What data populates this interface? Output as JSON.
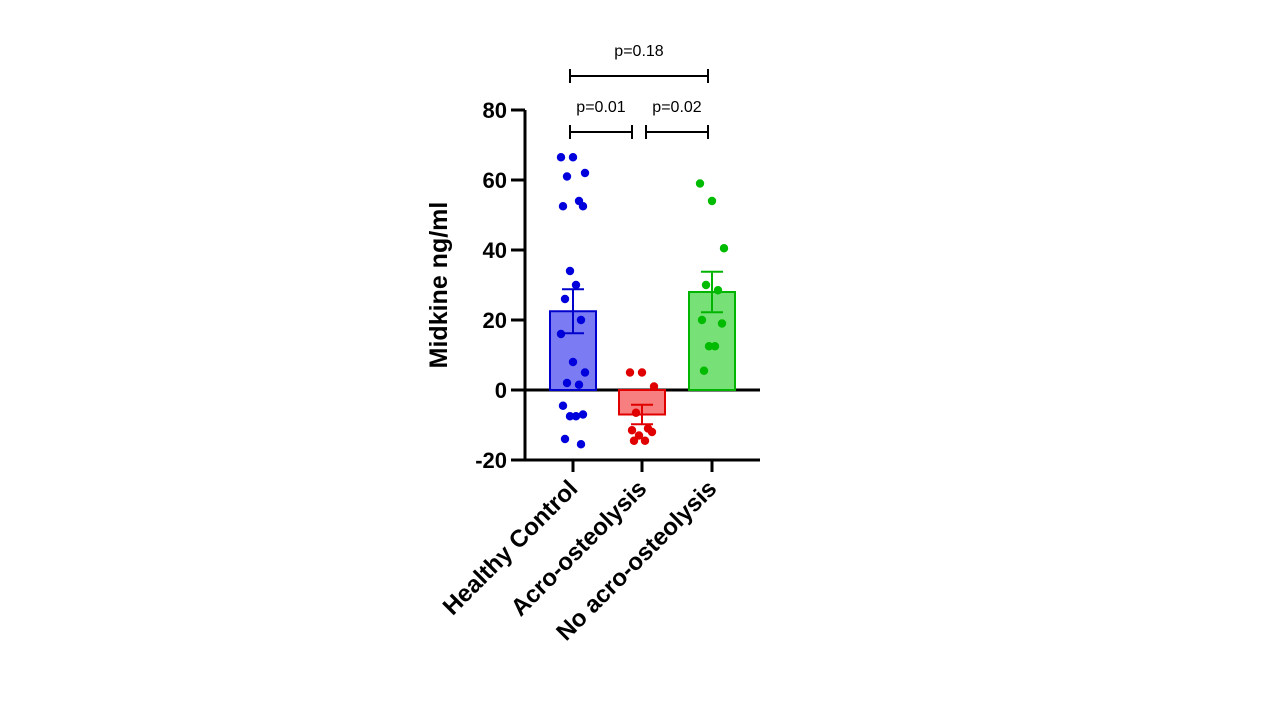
{
  "chart_data": {
    "type": "bar",
    "title": "",
    "xlabel": "",
    "ylabel": "Midkine ng/ml",
    "ylim": [
      -20,
      80
    ],
    "yticks": [
      -20,
      0,
      20,
      40,
      60,
      80
    ],
    "ytick_labels": [
      "-20",
      "0",
      "20",
      "40",
      "60",
      "80"
    ],
    "categories": [
      "Healthy Control",
      "Acro-osteolysis",
      "No acro-osteolysis"
    ],
    "bar_mean": [
      22.5,
      -7,
      28
    ],
    "error_sem": [
      6.3,
      2.8,
      5.8
    ],
    "colors": {
      "Healthy Control": {
        "fill": "#7b7cf3",
        "stroke": "#0000cc",
        "point": "#0000dd"
      },
      "Acro-osteolysis": {
        "fill": "#f77f7f",
        "stroke": "#e00000",
        "point": "#e00000"
      },
      "No acro-osteolysis": {
        "fill": "#77e077",
        "stroke": "#00b400",
        "point": "#00bb00"
      }
    },
    "points": [
      {
        "group": "Healthy Control",
        "y": [
          66.5,
          66.5,
          62,
          61,
          54,
          52.5,
          52.5,
          34,
          30,
          26,
          20,
          16,
          8,
          5,
          2,
          1.5,
          -4.5,
          -7,
          -7.5,
          -7.5,
          -14,
          -15.5
        ]
      },
      {
        "group": "Acro-osteolysis",
        "y": [
          5,
          5,
          1,
          -6.5,
          -11,
          -11.5,
          -12,
          -13,
          -14.5,
          -14.5
        ]
      },
      {
        "group": "No acro-osteolysis",
        "y": [
          59,
          54,
          40.5,
          30,
          28.5,
          20,
          19,
          12.5,
          12.5,
          5.5
        ]
      }
    ],
    "comparisons": [
      {
        "from": "Healthy Control",
        "to": "Acro-osteolysis",
        "label": "p=0.01"
      },
      {
        "from": "Acro-osteolysis",
        "to": "No acro-osteolysis",
        "label": "p=0.02"
      },
      {
        "from": "Healthy Control",
        "to": "No acro-osteolysis",
        "label": "p=0.18"
      }
    ]
  }
}
